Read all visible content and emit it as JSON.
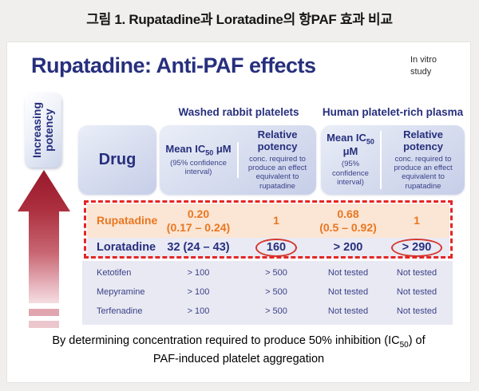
{
  "figure_title": "그림 1. Rupatadine과 Loratadine의 항PAF 효과 비교",
  "slide": {
    "title": "Rupatadine: Anti-PAF effects",
    "note_line1": "In vitro",
    "note_line2": "study",
    "side_label_line1": "Increasing",
    "side_label_line2": "potency"
  },
  "table": {
    "group_rabbit": "Washed rabbit platelets",
    "group_human": "Human platelet-rich plasma",
    "drug_header": "Drug",
    "mean_header": {
      "pre": "Mean IC",
      "sub": "50",
      "post": " μM",
      "note": "(95% confidence interval)"
    },
    "relative_header": {
      "title": "Relative potency",
      "note": "conc. required to produce an effect equivalent to rupatadine"
    },
    "rows": [
      {
        "name": "Rupatadine",
        "ic50_rabbit_line1": "0.20",
        "ic50_rabbit_line2": "(0.17 – 0.24)",
        "rel_rabbit": "1",
        "ic50_human_line1": "0.68",
        "ic50_human_line2": "(0.5 – 0.92)",
        "rel_human": "1"
      },
      {
        "name": "Loratadine",
        "ic50_rabbit": "32 (24 – 43)",
        "rel_rabbit": "160",
        "ic50_human": "> 200",
        "rel_human": "> 290"
      },
      {
        "name": "Ketotifen",
        "ic50_rabbit": "> 100",
        "rel_rabbit": "> 500",
        "ic50_human": "Not tested",
        "rel_human": "Not tested"
      },
      {
        "name": "Mepyramine",
        "ic50_rabbit": "> 100",
        "rel_rabbit": "> 500",
        "ic50_human": "Not tested",
        "rel_human": "Not tested"
      },
      {
        "name": "Terfenadine",
        "ic50_rabbit": "> 100",
        "rel_rabbit": "> 500",
        "ic50_human": "Not tested",
        "rel_human": "Not tested"
      }
    ]
  },
  "caption": {
    "line1_pre": "By determining concentration required to produce 50% inhibition (IC",
    "line1_sub": "50",
    "line1_post": ") of",
    "line2": "PAF-induced platelet aggregation"
  },
  "colors": {
    "navy": "#272f7d",
    "orange": "#e87722",
    "peach_row": "#fbe5d4",
    "lavender_row": "#e9e9f3",
    "dashed_red": "#e32726",
    "circle_red": "#d5382e",
    "arrow_dark_red": "#97182a"
  },
  "chart_data": {
    "type": "table",
    "title": "Rupatadine: Anti-PAF effects",
    "column_groups": [
      "Washed rabbit platelets",
      "Human platelet-rich plasma"
    ],
    "columns": [
      "Drug",
      "Mean IC50 μM (95% confidence interval) – rabbit",
      "Relative potency – rabbit",
      "Mean IC50 μM (95% confidence interval) – human",
      "Relative potency – human"
    ],
    "rows": [
      [
        "Rupatadine",
        "0.20 (0.17 – 0.24)",
        "1",
        "0.68 (0.5 – 0.92)",
        "1"
      ],
      [
        "Loratadine",
        "32 (24 – 43)",
        "160",
        "> 200",
        "> 290"
      ],
      [
        "Ketotifen",
        "> 100",
        "> 500",
        "Not tested",
        "Not tested"
      ],
      [
        "Mepyramine",
        "> 100",
        "> 500",
        "Not tested",
        "Not tested"
      ],
      [
        "Terfenadine",
        "> 100",
        "> 500",
        "Not tested",
        "Not tested"
      ]
    ],
    "annotations": [
      "Rupatadine and Loratadine rows outlined with red dashed border",
      "Values 160 and > 290 circled in red"
    ]
  }
}
